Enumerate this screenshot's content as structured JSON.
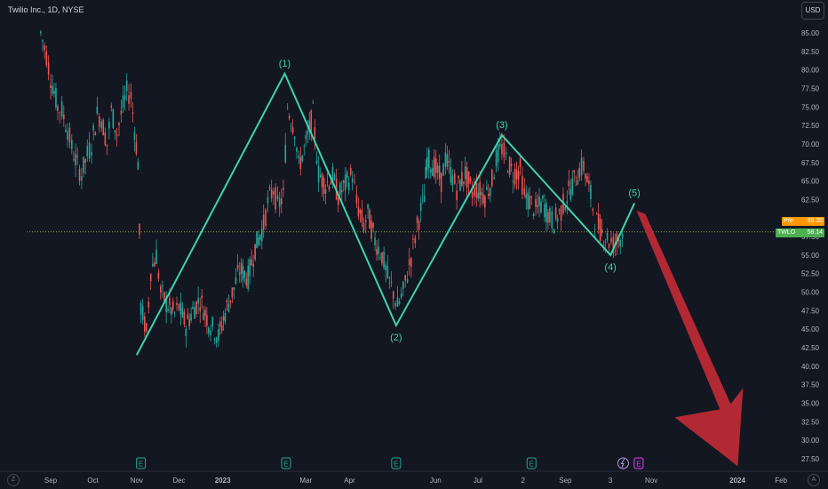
{
  "header": {
    "title": "Twilio Inc., 1D, NYSE",
    "currency_button": "USD"
  },
  "price_tags": {
    "pre": {
      "label": "Pre",
      "value": "58.30",
      "color": "#ff9800"
    },
    "last": {
      "label": "TWLO",
      "value": "58.14",
      "color": "#4caf50"
    }
  },
  "corner_buttons": {
    "left": "Z",
    "right": "A"
  },
  "chart_data": {
    "type": "candlestick",
    "symbol": "TWLO",
    "y_axis": {
      "min": 26.25,
      "max": 86.25,
      "ticks": [
        "85.00",
        "82.50",
        "80.00",
        "77.50",
        "75.00",
        "72.50",
        "70.00",
        "67.50",
        "65.00",
        "62.50",
        "57.50",
        "55.00",
        "52.50",
        "50.00",
        "47.50",
        "45.00",
        "42.50",
        "40.00",
        "37.50",
        "35.00",
        "32.50",
        "30.00",
        "27.50"
      ]
    },
    "x_axis": {
      "labels": [
        "Sep",
        "Oct",
        "Nov",
        "Dec",
        "2023",
        "Mar",
        "Apr",
        "Jun",
        "Jul",
        "2",
        "Sep",
        "3",
        "Nov",
        "2024",
        "Feb"
      ]
    },
    "last_price": 58.14,
    "pre_price": 58.3,
    "wave_points": [
      {
        "label": "",
        "date": "2022-11-01",
        "price": 41.5
      },
      {
        "label": "(1)",
        "date": "2023-02-14",
        "price": 79.5
      },
      {
        "label": "(2)",
        "date": "2023-05-04",
        "price": 45.5
      },
      {
        "label": "(3)",
        "date": "2023-07-18",
        "price": 71.2
      },
      {
        "label": "(4)",
        "date": "2023-10-03",
        "price": 55.0
      },
      {
        "label": "(5)",
        "date": "2023-10-20",
        "price": 62.0
      }
    ],
    "forecast_arrow": {
      "from": {
        "date": "2023-10-24",
        "price": 61.0
      },
      "to": {
        "date": "2023-12-31",
        "price": 26.5
      },
      "color": "#b22833"
    },
    "earnings_markers": [
      {
        "date": "2022-11-04",
        "label": "E"
      },
      {
        "date": "2023-02-15",
        "label": "E"
      },
      {
        "date": "2023-05-04",
        "label": "E"
      },
      {
        "date": "2023-08-08",
        "label": "E"
      },
      {
        "date": "2023-10-23",
        "label": "E"
      }
    ],
    "split_marker": {
      "date": "2023-10-12"
    },
    "price_series": [
      {
        "date": "2022-08-25",
        "price": 85.0
      },
      {
        "date": "2022-08-29",
        "price": 82.0
      },
      {
        "date": "2022-09-01",
        "price": 79.0
      },
      {
        "date": "2022-09-06",
        "price": 75.0
      },
      {
        "date": "2022-09-09",
        "price": 74.5
      },
      {
        "date": "2022-09-13",
        "price": 72.0
      },
      {
        "date": "2022-09-16",
        "price": 69.5
      },
      {
        "date": "2022-09-20",
        "price": 67.0
      },
      {
        "date": "2022-09-23",
        "price": 66.0
      },
      {
        "date": "2022-09-27",
        "price": 68.5
      },
      {
        "date": "2022-09-30",
        "price": 70.0
      },
      {
        "date": "2022-10-04",
        "price": 74.0
      },
      {
        "date": "2022-10-07",
        "price": 73.5
      },
      {
        "date": "2022-10-11",
        "price": 70.0
      },
      {
        "date": "2022-10-14",
        "price": 74.5
      },
      {
        "date": "2022-10-18",
        "price": 71.5
      },
      {
        "date": "2022-10-21",
        "price": 74.0
      },
      {
        "date": "2022-10-25",
        "price": 77.0
      },
      {
        "date": "2022-10-28",
        "price": 76.5
      },
      {
        "date": "2022-11-02",
        "price": 67.5
      },
      {
        "date": "2022-11-04",
        "price": 48.0
      },
      {
        "date": "2022-11-08",
        "price": 44.5
      },
      {
        "date": "2022-11-11",
        "price": 53.0
      },
      {
        "date": "2022-11-15",
        "price": 55.0
      },
      {
        "date": "2022-11-18",
        "price": 50.0
      },
      {
        "date": "2022-11-22",
        "price": 48.5
      },
      {
        "date": "2022-11-28",
        "price": 47.0
      },
      {
        "date": "2022-12-01",
        "price": 48.0
      },
      {
        "date": "2022-12-06",
        "price": 45.5
      },
      {
        "date": "2022-12-12",
        "price": 48.0
      },
      {
        "date": "2022-12-16",
        "price": 49.0
      },
      {
        "date": "2022-12-22",
        "price": 46.0
      },
      {
        "date": "2022-12-29",
        "price": 44.0
      },
      {
        "date": "2023-01-04",
        "price": 48.0
      },
      {
        "date": "2023-01-09",
        "price": 50.5
      },
      {
        "date": "2023-01-13",
        "price": 53.0
      },
      {
        "date": "2023-01-19",
        "price": 52.0
      },
      {
        "date": "2023-01-24",
        "price": 56.0
      },
      {
        "date": "2023-01-30",
        "price": 59.0
      },
      {
        "date": "2023-02-02",
        "price": 62.0
      },
      {
        "date": "2023-02-06",
        "price": 64.0
      },
      {
        "date": "2023-02-09",
        "price": 61.5
      },
      {
        "date": "2023-02-13",
        "price": 63.0
      },
      {
        "date": "2023-02-16",
        "price": 75.0
      },
      {
        "date": "2023-02-21",
        "price": 72.0
      },
      {
        "date": "2023-02-24",
        "price": 67.0
      },
      {
        "date": "2023-03-01",
        "price": 70.0
      },
      {
        "date": "2023-03-06",
        "price": 74.0
      },
      {
        "date": "2023-03-10",
        "price": 66.0
      },
      {
        "date": "2023-03-15",
        "price": 64.5
      },
      {
        "date": "2023-03-20",
        "price": 65.5
      },
      {
        "date": "2023-03-24",
        "price": 63.0
      },
      {
        "date": "2023-03-29",
        "price": 64.5
      },
      {
        "date": "2023-04-03",
        "price": 66.0
      },
      {
        "date": "2023-04-06",
        "price": 62.0
      },
      {
        "date": "2023-04-11",
        "price": 59.0
      },
      {
        "date": "2023-04-14",
        "price": 60.5
      },
      {
        "date": "2023-04-19",
        "price": 57.0
      },
      {
        "date": "2023-04-24",
        "price": 55.0
      },
      {
        "date": "2023-04-28",
        "price": 52.0
      },
      {
        "date": "2023-05-02",
        "price": 50.0
      },
      {
        "date": "2023-05-05",
        "price": 48.0
      },
      {
        "date": "2023-05-09",
        "price": 50.0
      },
      {
        "date": "2023-05-12",
        "price": 52.5
      },
      {
        "date": "2023-05-16",
        "price": 56.0
      },
      {
        "date": "2023-05-19",
        "price": 59.0
      },
      {
        "date": "2023-05-24",
        "price": 63.0
      },
      {
        "date": "2023-05-26",
        "price": 68.0
      },
      {
        "date": "2023-05-31",
        "price": 67.0
      },
      {
        "date": "2023-06-05",
        "price": 65.0
      },
      {
        "date": "2023-06-08",
        "price": 68.0
      },
      {
        "date": "2023-06-13",
        "price": 65.5
      },
      {
        "date": "2023-06-16",
        "price": 64.0
      },
      {
        "date": "2023-06-22",
        "price": 66.0
      },
      {
        "date": "2023-06-27",
        "price": 63.5
      },
      {
        "date": "2023-06-30",
        "price": 64.0
      },
      {
        "date": "2023-07-06",
        "price": 63.0
      },
      {
        "date": "2023-07-11",
        "price": 65.0
      },
      {
        "date": "2023-07-14",
        "price": 68.0
      },
      {
        "date": "2023-07-18",
        "price": 69.5
      },
      {
        "date": "2023-07-21",
        "price": 68.0
      },
      {
        "date": "2023-07-26",
        "price": 66.0
      },
      {
        "date": "2023-07-31",
        "price": 66.5
      },
      {
        "date": "2023-08-03",
        "price": 63.0
      },
      {
        "date": "2023-08-08",
        "price": 62.0
      },
      {
        "date": "2023-08-11",
        "price": 61.0
      },
      {
        "date": "2023-08-16",
        "price": 62.0
      },
      {
        "date": "2023-08-21",
        "price": 60.0
      },
      {
        "date": "2023-08-24",
        "price": 59.5
      },
      {
        "date": "2023-08-29",
        "price": 61.0
      },
      {
        "date": "2023-09-01",
        "price": 62.5
      },
      {
        "date": "2023-09-06",
        "price": 64.5
      },
      {
        "date": "2023-09-11",
        "price": 66.5
      },
      {
        "date": "2023-09-14",
        "price": 67.0
      },
      {
        "date": "2023-09-19",
        "price": 63.0
      },
      {
        "date": "2023-09-22",
        "price": 60.0
      },
      {
        "date": "2023-09-27",
        "price": 58.0
      },
      {
        "date": "2023-10-02",
        "price": 57.0
      },
      {
        "date": "2023-10-05",
        "price": 56.5
      },
      {
        "date": "2023-10-10",
        "price": 57.5
      },
      {
        "date": "2023-10-13",
        "price": 58.1
      }
    ]
  }
}
